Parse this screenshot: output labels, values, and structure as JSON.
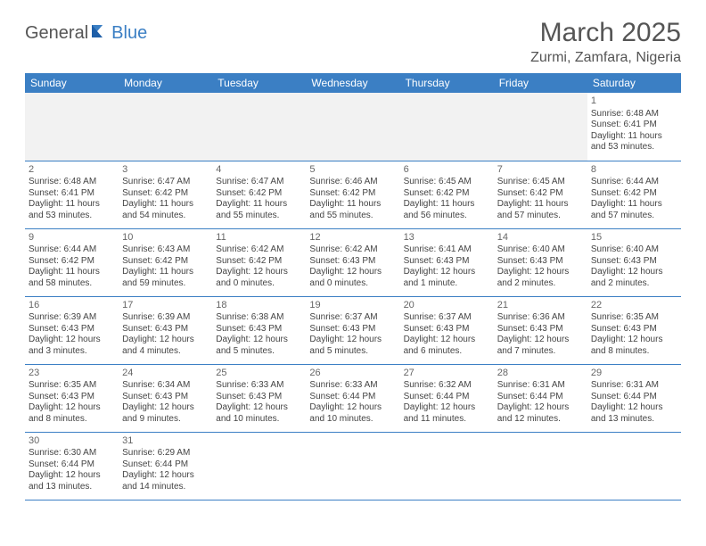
{
  "logo": {
    "part1": "General",
    "part2": "Blue"
  },
  "title": "March 2025",
  "location": "Zurmi, Zamfara, Nigeria",
  "colors": {
    "header_bg": "#3b7fc4",
    "header_text": "#ffffff",
    "border": "#3b7fc4",
    "logo_gray": "#555555",
    "logo_blue": "#3b7fc4"
  },
  "weekdays": [
    "Sunday",
    "Monday",
    "Tuesday",
    "Wednesday",
    "Thursday",
    "Friday",
    "Saturday"
  ],
  "weeks": [
    [
      null,
      null,
      null,
      null,
      null,
      null,
      {
        "n": "1",
        "sr": "Sunrise: 6:48 AM",
        "ss": "Sunset: 6:41 PM",
        "dl": "Daylight: 11 hours and 53 minutes."
      }
    ],
    [
      {
        "n": "2",
        "sr": "Sunrise: 6:48 AM",
        "ss": "Sunset: 6:41 PM",
        "dl": "Daylight: 11 hours and 53 minutes."
      },
      {
        "n": "3",
        "sr": "Sunrise: 6:47 AM",
        "ss": "Sunset: 6:42 PM",
        "dl": "Daylight: 11 hours and 54 minutes."
      },
      {
        "n": "4",
        "sr": "Sunrise: 6:47 AM",
        "ss": "Sunset: 6:42 PM",
        "dl": "Daylight: 11 hours and 55 minutes."
      },
      {
        "n": "5",
        "sr": "Sunrise: 6:46 AM",
        "ss": "Sunset: 6:42 PM",
        "dl": "Daylight: 11 hours and 55 minutes."
      },
      {
        "n": "6",
        "sr": "Sunrise: 6:45 AM",
        "ss": "Sunset: 6:42 PM",
        "dl": "Daylight: 11 hours and 56 minutes."
      },
      {
        "n": "7",
        "sr": "Sunrise: 6:45 AM",
        "ss": "Sunset: 6:42 PM",
        "dl": "Daylight: 11 hours and 57 minutes."
      },
      {
        "n": "8",
        "sr": "Sunrise: 6:44 AM",
        "ss": "Sunset: 6:42 PM",
        "dl": "Daylight: 11 hours and 57 minutes."
      }
    ],
    [
      {
        "n": "9",
        "sr": "Sunrise: 6:44 AM",
        "ss": "Sunset: 6:42 PM",
        "dl": "Daylight: 11 hours and 58 minutes."
      },
      {
        "n": "10",
        "sr": "Sunrise: 6:43 AM",
        "ss": "Sunset: 6:42 PM",
        "dl": "Daylight: 11 hours and 59 minutes."
      },
      {
        "n": "11",
        "sr": "Sunrise: 6:42 AM",
        "ss": "Sunset: 6:42 PM",
        "dl": "Daylight: 12 hours and 0 minutes."
      },
      {
        "n": "12",
        "sr": "Sunrise: 6:42 AM",
        "ss": "Sunset: 6:43 PM",
        "dl": "Daylight: 12 hours and 0 minutes."
      },
      {
        "n": "13",
        "sr": "Sunrise: 6:41 AM",
        "ss": "Sunset: 6:43 PM",
        "dl": "Daylight: 12 hours and 1 minute."
      },
      {
        "n": "14",
        "sr": "Sunrise: 6:40 AM",
        "ss": "Sunset: 6:43 PM",
        "dl": "Daylight: 12 hours and 2 minutes."
      },
      {
        "n": "15",
        "sr": "Sunrise: 6:40 AM",
        "ss": "Sunset: 6:43 PM",
        "dl": "Daylight: 12 hours and 2 minutes."
      }
    ],
    [
      {
        "n": "16",
        "sr": "Sunrise: 6:39 AM",
        "ss": "Sunset: 6:43 PM",
        "dl": "Daylight: 12 hours and 3 minutes."
      },
      {
        "n": "17",
        "sr": "Sunrise: 6:39 AM",
        "ss": "Sunset: 6:43 PM",
        "dl": "Daylight: 12 hours and 4 minutes."
      },
      {
        "n": "18",
        "sr": "Sunrise: 6:38 AM",
        "ss": "Sunset: 6:43 PM",
        "dl": "Daylight: 12 hours and 5 minutes."
      },
      {
        "n": "19",
        "sr": "Sunrise: 6:37 AM",
        "ss": "Sunset: 6:43 PM",
        "dl": "Daylight: 12 hours and 5 minutes."
      },
      {
        "n": "20",
        "sr": "Sunrise: 6:37 AM",
        "ss": "Sunset: 6:43 PM",
        "dl": "Daylight: 12 hours and 6 minutes."
      },
      {
        "n": "21",
        "sr": "Sunrise: 6:36 AM",
        "ss": "Sunset: 6:43 PM",
        "dl": "Daylight: 12 hours and 7 minutes."
      },
      {
        "n": "22",
        "sr": "Sunrise: 6:35 AM",
        "ss": "Sunset: 6:43 PM",
        "dl": "Daylight: 12 hours and 8 minutes."
      }
    ],
    [
      {
        "n": "23",
        "sr": "Sunrise: 6:35 AM",
        "ss": "Sunset: 6:43 PM",
        "dl": "Daylight: 12 hours and 8 minutes."
      },
      {
        "n": "24",
        "sr": "Sunrise: 6:34 AM",
        "ss": "Sunset: 6:43 PM",
        "dl": "Daylight: 12 hours and 9 minutes."
      },
      {
        "n": "25",
        "sr": "Sunrise: 6:33 AM",
        "ss": "Sunset: 6:43 PM",
        "dl": "Daylight: 12 hours and 10 minutes."
      },
      {
        "n": "26",
        "sr": "Sunrise: 6:33 AM",
        "ss": "Sunset: 6:44 PM",
        "dl": "Daylight: 12 hours and 10 minutes."
      },
      {
        "n": "27",
        "sr": "Sunrise: 6:32 AM",
        "ss": "Sunset: 6:44 PM",
        "dl": "Daylight: 12 hours and 11 minutes."
      },
      {
        "n": "28",
        "sr": "Sunrise: 6:31 AM",
        "ss": "Sunset: 6:44 PM",
        "dl": "Daylight: 12 hours and 12 minutes."
      },
      {
        "n": "29",
        "sr": "Sunrise: 6:31 AM",
        "ss": "Sunset: 6:44 PM",
        "dl": "Daylight: 12 hours and 13 minutes."
      }
    ],
    [
      {
        "n": "30",
        "sr": "Sunrise: 6:30 AM",
        "ss": "Sunset: 6:44 PM",
        "dl": "Daylight: 12 hours and 13 minutes."
      },
      {
        "n": "31",
        "sr": "Sunrise: 6:29 AM",
        "ss": "Sunset: 6:44 PM",
        "dl": "Daylight: 12 hours and 14 minutes."
      },
      null,
      null,
      null,
      null,
      null
    ]
  ]
}
